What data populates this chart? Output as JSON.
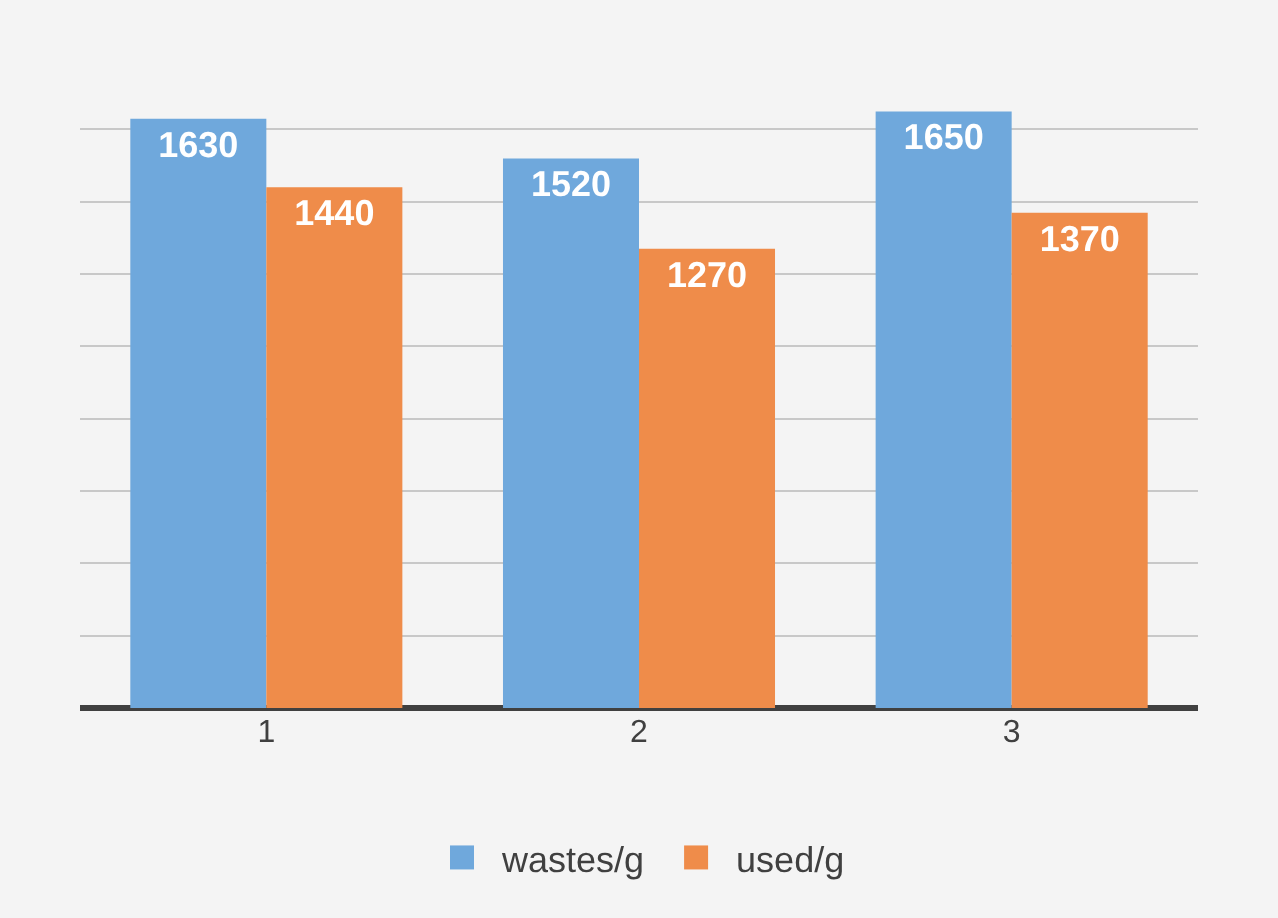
{
  "chart_data": {
    "type": "bar",
    "categories": [
      "1",
      "2",
      "3"
    ],
    "series": [
      {
        "name": "wastes/g",
        "color": "#6fa8dc",
        "values": [
          1630,
          1520,
          1650
        ]
      },
      {
        "name": "used/g",
        "color": "#ef8c4a",
        "values": [
          1440,
          1270,
          1370
        ]
      }
    ],
    "data_labels": true,
    "tick_labels": "x",
    "grid": "y",
    "legend": "bottom"
  }
}
